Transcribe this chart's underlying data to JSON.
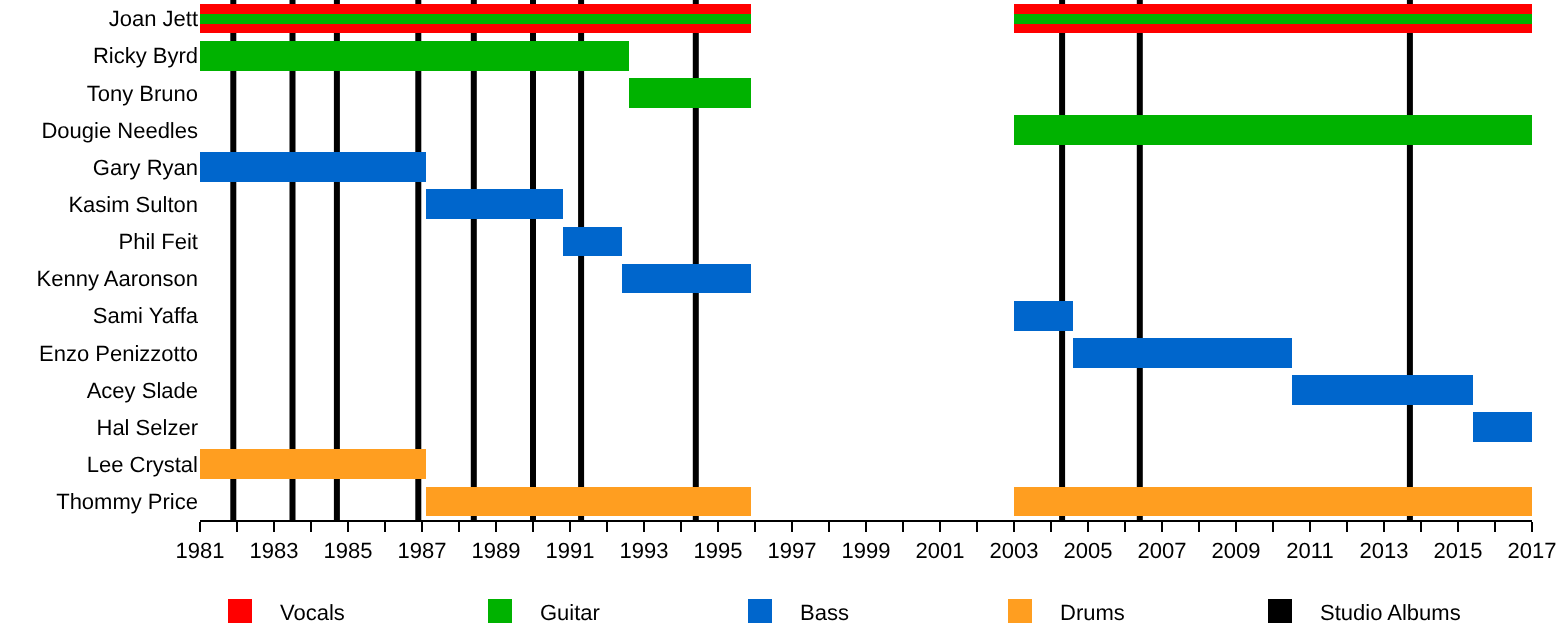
{
  "chart_data": {
    "type": "bar",
    "orientation": "horizontal",
    "categories": [
      "Joan Jett",
      "Ricky Byrd",
      "Tony Bruno",
      "Dougie Needles",
      "Gary Ryan",
      "Kasim Sulton",
      "Phil Feit",
      "Kenny Aaronson",
      "Sami Yaffa",
      "Enzo Penizzotto",
      "Acey Slade",
      "Hal Selzer",
      "Lee Crystal",
      "Thommy Price"
    ],
    "series": [
      {
        "name": "Vocals",
        "color": "#ff0000",
        "values": [
          14.9,
          null,
          null,
          null,
          null,
          null,
          null,
          null,
          null,
          null,
          null,
          null,
          null,
          null
        ],
        "base": [
          1981,
          null,
          null,
          null,
          null,
          null,
          null,
          null,
          null,
          null,
          null,
          null,
          null,
          null
        ]
      },
      {
        "color": "#ff0000",
        "values": [
          14,
          null,
          null,
          null,
          null,
          null,
          null,
          null,
          null,
          null,
          null,
          null,
          null,
          null
        ],
        "base": [
          2003,
          null,
          null,
          null,
          null,
          null,
          null,
          null,
          null,
          null,
          null,
          null,
          null,
          null
        ]
      },
      {
        "name": "Guitar",
        "color": "#00b200",
        "values": [
          14.9,
          11.6,
          3.3,
          null,
          null,
          null,
          null,
          null,
          null,
          null,
          null,
          null,
          null,
          null
        ],
        "base": [
          1981,
          1981,
          1992.6,
          null,
          null,
          null,
          null,
          null,
          null,
          null,
          null,
          null,
          null,
          null
        ]
      },
      {
        "color": "#00b200",
        "values": [
          14,
          null,
          null,
          14,
          null,
          null,
          null,
          null,
          null,
          null,
          null,
          null,
          null,
          null
        ],
        "base": [
          2003,
          null,
          null,
          2003,
          null,
          null,
          null,
          null,
          null,
          null,
          null,
          null,
          null,
          null
        ]
      },
      {
        "name": "Bass",
        "color": "#0066cc",
        "values": [
          null,
          null,
          null,
          null,
          6.1,
          3.7,
          1.6,
          3.5,
          1.6,
          5.9,
          4.9,
          1.6,
          null,
          null
        ],
        "base": [
          null,
          null,
          null,
          null,
          1981,
          1987.1,
          1990.8,
          1992.4,
          2003,
          2004.6,
          2010.5,
          2015.4,
          null,
          null
        ]
      },
      {
        "name": "Drums",
        "color": "#ff9e20",
        "values": [
          null,
          null,
          null,
          null,
          null,
          null,
          null,
          null,
          null,
          null,
          null,
          null,
          6.1,
          8.8
        ],
        "base": [
          null,
          null,
          null,
          null,
          null,
          null,
          null,
          null,
          null,
          null,
          null,
          null,
          1981,
          1987.1
        ]
      },
      {
        "color": "#ff9e20",
        "values": [
          null,
          null,
          null,
          null,
          null,
          null,
          null,
          null,
          null,
          null,
          null,
          null,
          null,
          14
        ],
        "base": [
          null,
          null,
          null,
          null,
          null,
          null,
          null,
          null,
          null,
          null,
          null,
          null,
          null,
          2003
        ]
      }
    ],
    "xlim": [
      1981,
      2017
    ],
    "xticks": [
      1981,
      {
        "value": 1982,
        "label": null
      },
      1983,
      {
        "value": 1984,
        "label": null
      },
      1985,
      {
        "value": 1986,
        "label": null
      },
      1987,
      {
        "value": 1988,
        "label": null
      },
      1989,
      {
        "value": 1990,
        "label": null
      },
      1991,
      {
        "value": 1992,
        "label": null
      },
      1993,
      {
        "value": 1994,
        "label": null
      },
      1995,
      {
        "value": 1996,
        "label": null
      },
      1997,
      {
        "value": 1998,
        "label": null
      },
      1999,
      {
        "value": 2000,
        "label": null
      },
      2001,
      {
        "value": 2002,
        "label": null
      },
      2003,
      {
        "value": 2004,
        "label": null
      },
      2005,
      {
        "value": 2006,
        "label": null
      },
      2007,
      {
        "value": 2008,
        "label": null
      },
      2009,
      {
        "value": 2010,
        "label": null
      },
      2011,
      {
        "value": 2012,
        "label": null
      },
      2013,
      {
        "value": 2014,
        "label": null
      },
      2015,
      {
        "value": 2016,
        "label": null
      },
      2017
    ],
    "ref_lines": [
      {
        "axis": "x",
        "value": 1981.9,
        "label": "Studio Albums",
        "color": "#000000"
      },
      {
        "axis": "x",
        "value": 1983.5,
        "color": "#000000"
      },
      {
        "axis": "x",
        "value": 1984.7,
        "color": "#000000"
      },
      {
        "axis": "x",
        "value": 1986.9,
        "color": "#000000"
      },
      {
        "axis": "x",
        "value": 1988.4,
        "color": "#000000"
      },
      {
        "axis": "x",
        "value": 1990,
        "color": "#000000"
      },
      {
        "axis": "x",
        "value": 1991.3,
        "color": "#000000"
      },
      {
        "axis": "x",
        "value": 1994.4,
        "color": "#000000"
      },
      {
        "axis": "x",
        "value": 2004.3,
        "color": "#000000"
      },
      {
        "axis": "x",
        "value": 2006.4,
        "color": "#000000"
      },
      {
        "axis": "x",
        "value": 2013.7,
        "color": "#000000"
      }
    ],
    "grid": false,
    "legend": "bottom"
  }
}
